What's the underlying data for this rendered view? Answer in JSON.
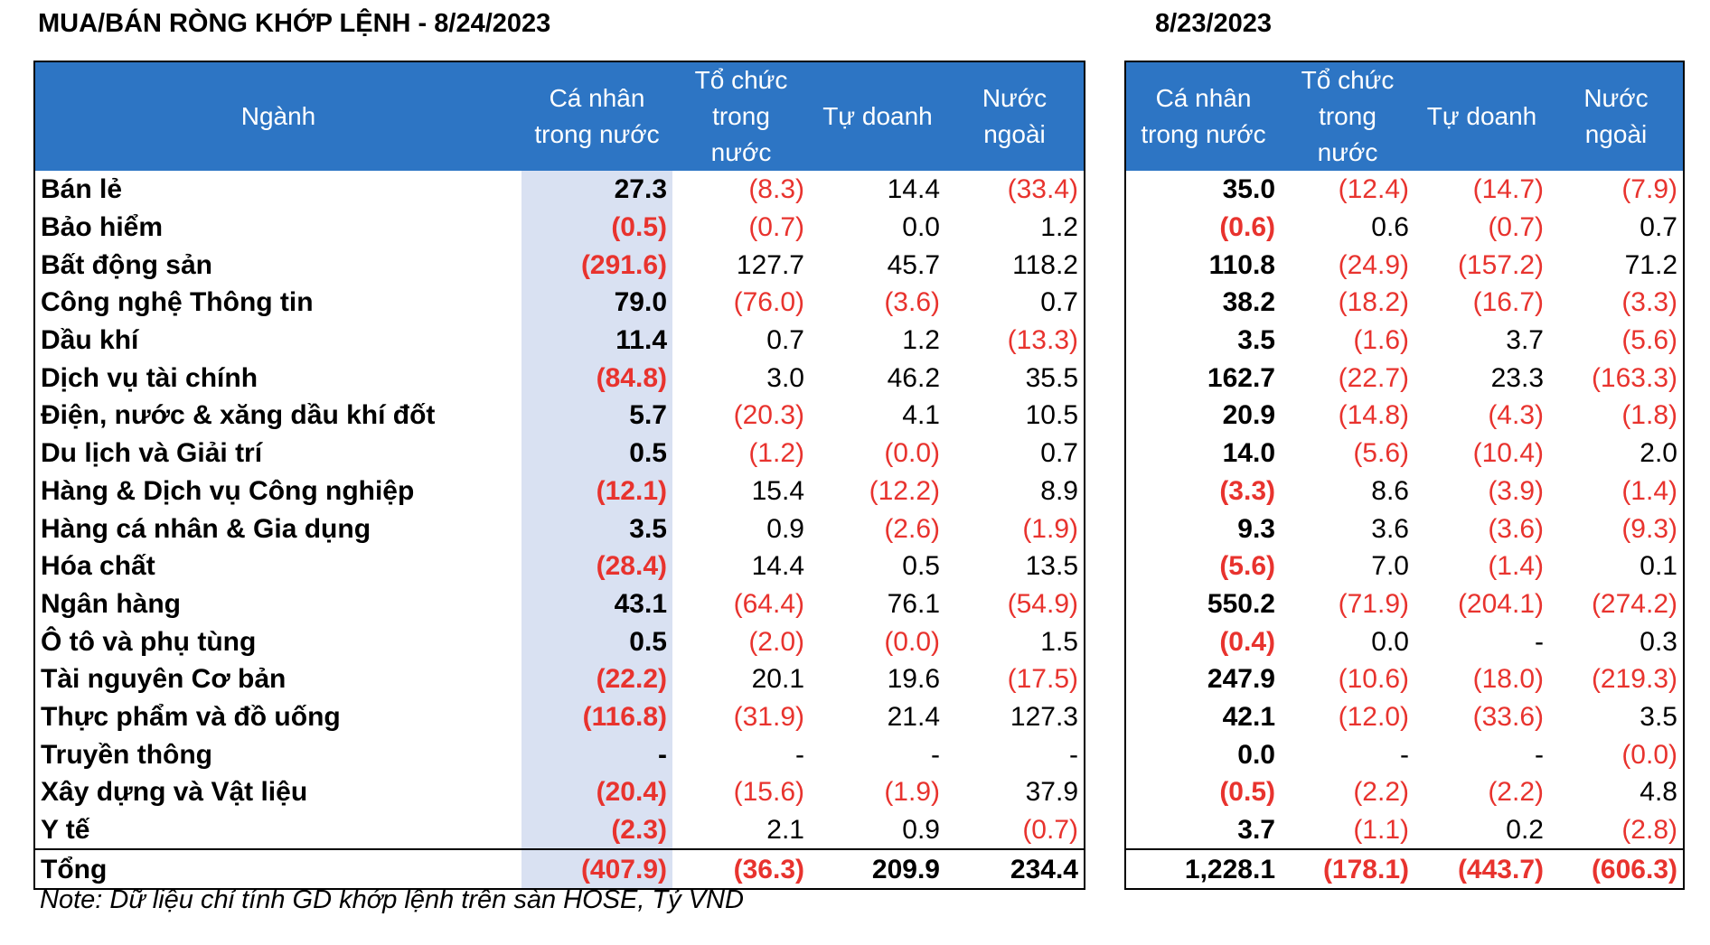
{
  "title_left": "MUA/BÁN RÒNG KHỚP LỆNH - 8/24/2023",
  "title_right": "8/23/2023",
  "headers_left": [
    "Ngành",
    "Cá nhân\ntrong nước",
    "Tổ chức\ntrong\nnước",
    "Tự doanh",
    "Nước\nngoài"
  ],
  "headers_right": [
    "Cá nhân\ntrong nước",
    "Tổ chức\ntrong\nnước",
    "Tự doanh",
    "Nước\nngoài"
  ],
  "rows": [
    {
      "sector": "Bán lẻ",
      "d1": [
        "27.3",
        "(8.3)",
        "14.4",
        "(33.4)"
      ],
      "d0": [
        "35.0",
        "(12.4)",
        "(14.7)",
        "(7.9)"
      ]
    },
    {
      "sector": "Bảo hiểm",
      "d1": [
        "(0.5)",
        "(0.7)",
        "0.0",
        "1.2"
      ],
      "d0": [
        "(0.6)",
        "0.6",
        "(0.7)",
        "0.7"
      ]
    },
    {
      "sector": "Bất động sản",
      "d1": [
        "(291.6)",
        "127.7",
        "45.7",
        "118.2"
      ],
      "d0": [
        "110.8",
        "(24.9)",
        "(157.2)",
        "71.2"
      ]
    },
    {
      "sector": "Công nghệ Thông tin",
      "d1": [
        "79.0",
        "(76.0)",
        "(3.6)",
        "0.7"
      ],
      "d0": [
        "38.2",
        "(18.2)",
        "(16.7)",
        "(3.3)"
      ]
    },
    {
      "sector": "Dầu khí",
      "d1": [
        "11.4",
        "0.7",
        "1.2",
        "(13.3)"
      ],
      "d0": [
        "3.5",
        "(1.6)",
        "3.7",
        "(5.6)"
      ]
    },
    {
      "sector": "Dịch vụ tài chính",
      "d1": [
        "(84.8)",
        "3.0",
        "46.2",
        "35.5"
      ],
      "d0": [
        "162.7",
        "(22.7)",
        "23.3",
        "(163.3)"
      ]
    },
    {
      "sector": "Điện, nước & xăng dầu khí đốt",
      "d1": [
        "5.7",
        "(20.3)",
        "4.1",
        "10.5"
      ],
      "d0": [
        "20.9",
        "(14.8)",
        "(4.3)",
        "(1.8)"
      ]
    },
    {
      "sector": "Du lịch và Giải trí",
      "d1": [
        "0.5",
        "(1.2)",
        "(0.0)",
        "0.7"
      ],
      "d0": [
        "14.0",
        "(5.6)",
        "(10.4)",
        "2.0"
      ]
    },
    {
      "sector": "Hàng & Dịch vụ Công nghiệp",
      "d1": [
        "(12.1)",
        "15.4",
        "(12.2)",
        "8.9"
      ],
      "d0": [
        "(3.3)",
        "8.6",
        "(3.9)",
        "(1.4)"
      ]
    },
    {
      "sector": "Hàng cá nhân & Gia dụng",
      "d1": [
        "3.5",
        "0.9",
        "(2.6)",
        "(1.9)"
      ],
      "d0": [
        "9.3",
        "3.6",
        "(3.6)",
        "(9.3)"
      ]
    },
    {
      "sector": "Hóa chất",
      "d1": [
        "(28.4)",
        "14.4",
        "0.5",
        "13.5"
      ],
      "d0": [
        "(5.6)",
        "7.0",
        "(1.4)",
        "0.1"
      ]
    },
    {
      "sector": "Ngân hàng",
      "d1": [
        "43.1",
        "(64.4)",
        "76.1",
        "(54.9)"
      ],
      "d0": [
        "550.2",
        "(71.9)",
        "(204.1)",
        "(274.2)"
      ]
    },
    {
      "sector": "Ô tô và phụ tùng",
      "d1": [
        "0.5",
        "(2.0)",
        "(0.0)",
        "1.5"
      ],
      "d0": [
        "(0.4)",
        "0.0",
        "-",
        "0.3"
      ]
    },
    {
      "sector": "Tài nguyên Cơ bản",
      "d1": [
        "(22.2)",
        "20.1",
        "19.6",
        "(17.5)"
      ],
      "d0": [
        "247.9",
        "(10.6)",
        "(18.0)",
        "(219.3)"
      ]
    },
    {
      "sector": "Thực phẩm và đồ uống",
      "d1": [
        "(116.8)",
        "(31.9)",
        "21.4",
        "127.3"
      ],
      "d0": [
        "42.1",
        "(12.0)",
        "(33.6)",
        "3.5"
      ]
    },
    {
      "sector": "Truyền thông",
      "d1": [
        "-",
        "-",
        "-",
        "-"
      ],
      "d0": [
        "0.0",
        "-",
        "-",
        "(0.0)"
      ]
    },
    {
      "sector": "Xây dựng và Vật liệu",
      "d1": [
        "(20.4)",
        "(15.6)",
        "(1.9)",
        "37.9"
      ],
      "d0": [
        "(0.5)",
        "(2.2)",
        "(2.2)",
        "4.8"
      ]
    },
    {
      "sector": "Y tế",
      "d1": [
        "(2.3)",
        "2.1",
        "0.9",
        "(0.7)"
      ],
      "d0": [
        "3.7",
        "(1.1)",
        "0.2",
        "(2.8)"
      ]
    }
  ],
  "total": {
    "label": "Tổng",
    "d1": [
      "(407.9)",
      "(36.3)",
      "209.9",
      "234.4"
    ],
    "d0": [
      "1,228.1",
      "(178.1)",
      "(443.7)",
      "(606.3)"
    ]
  },
  "note": "Note: Dữ liệu chỉ tính GD khớp lệnh trên sàn HOSE, Tỷ VND",
  "colors": {
    "header_bg": "#2d75c4",
    "header_text": "#ffffff",
    "highlight_col": "#d9e1f2",
    "negative": "#e8332e"
  }
}
